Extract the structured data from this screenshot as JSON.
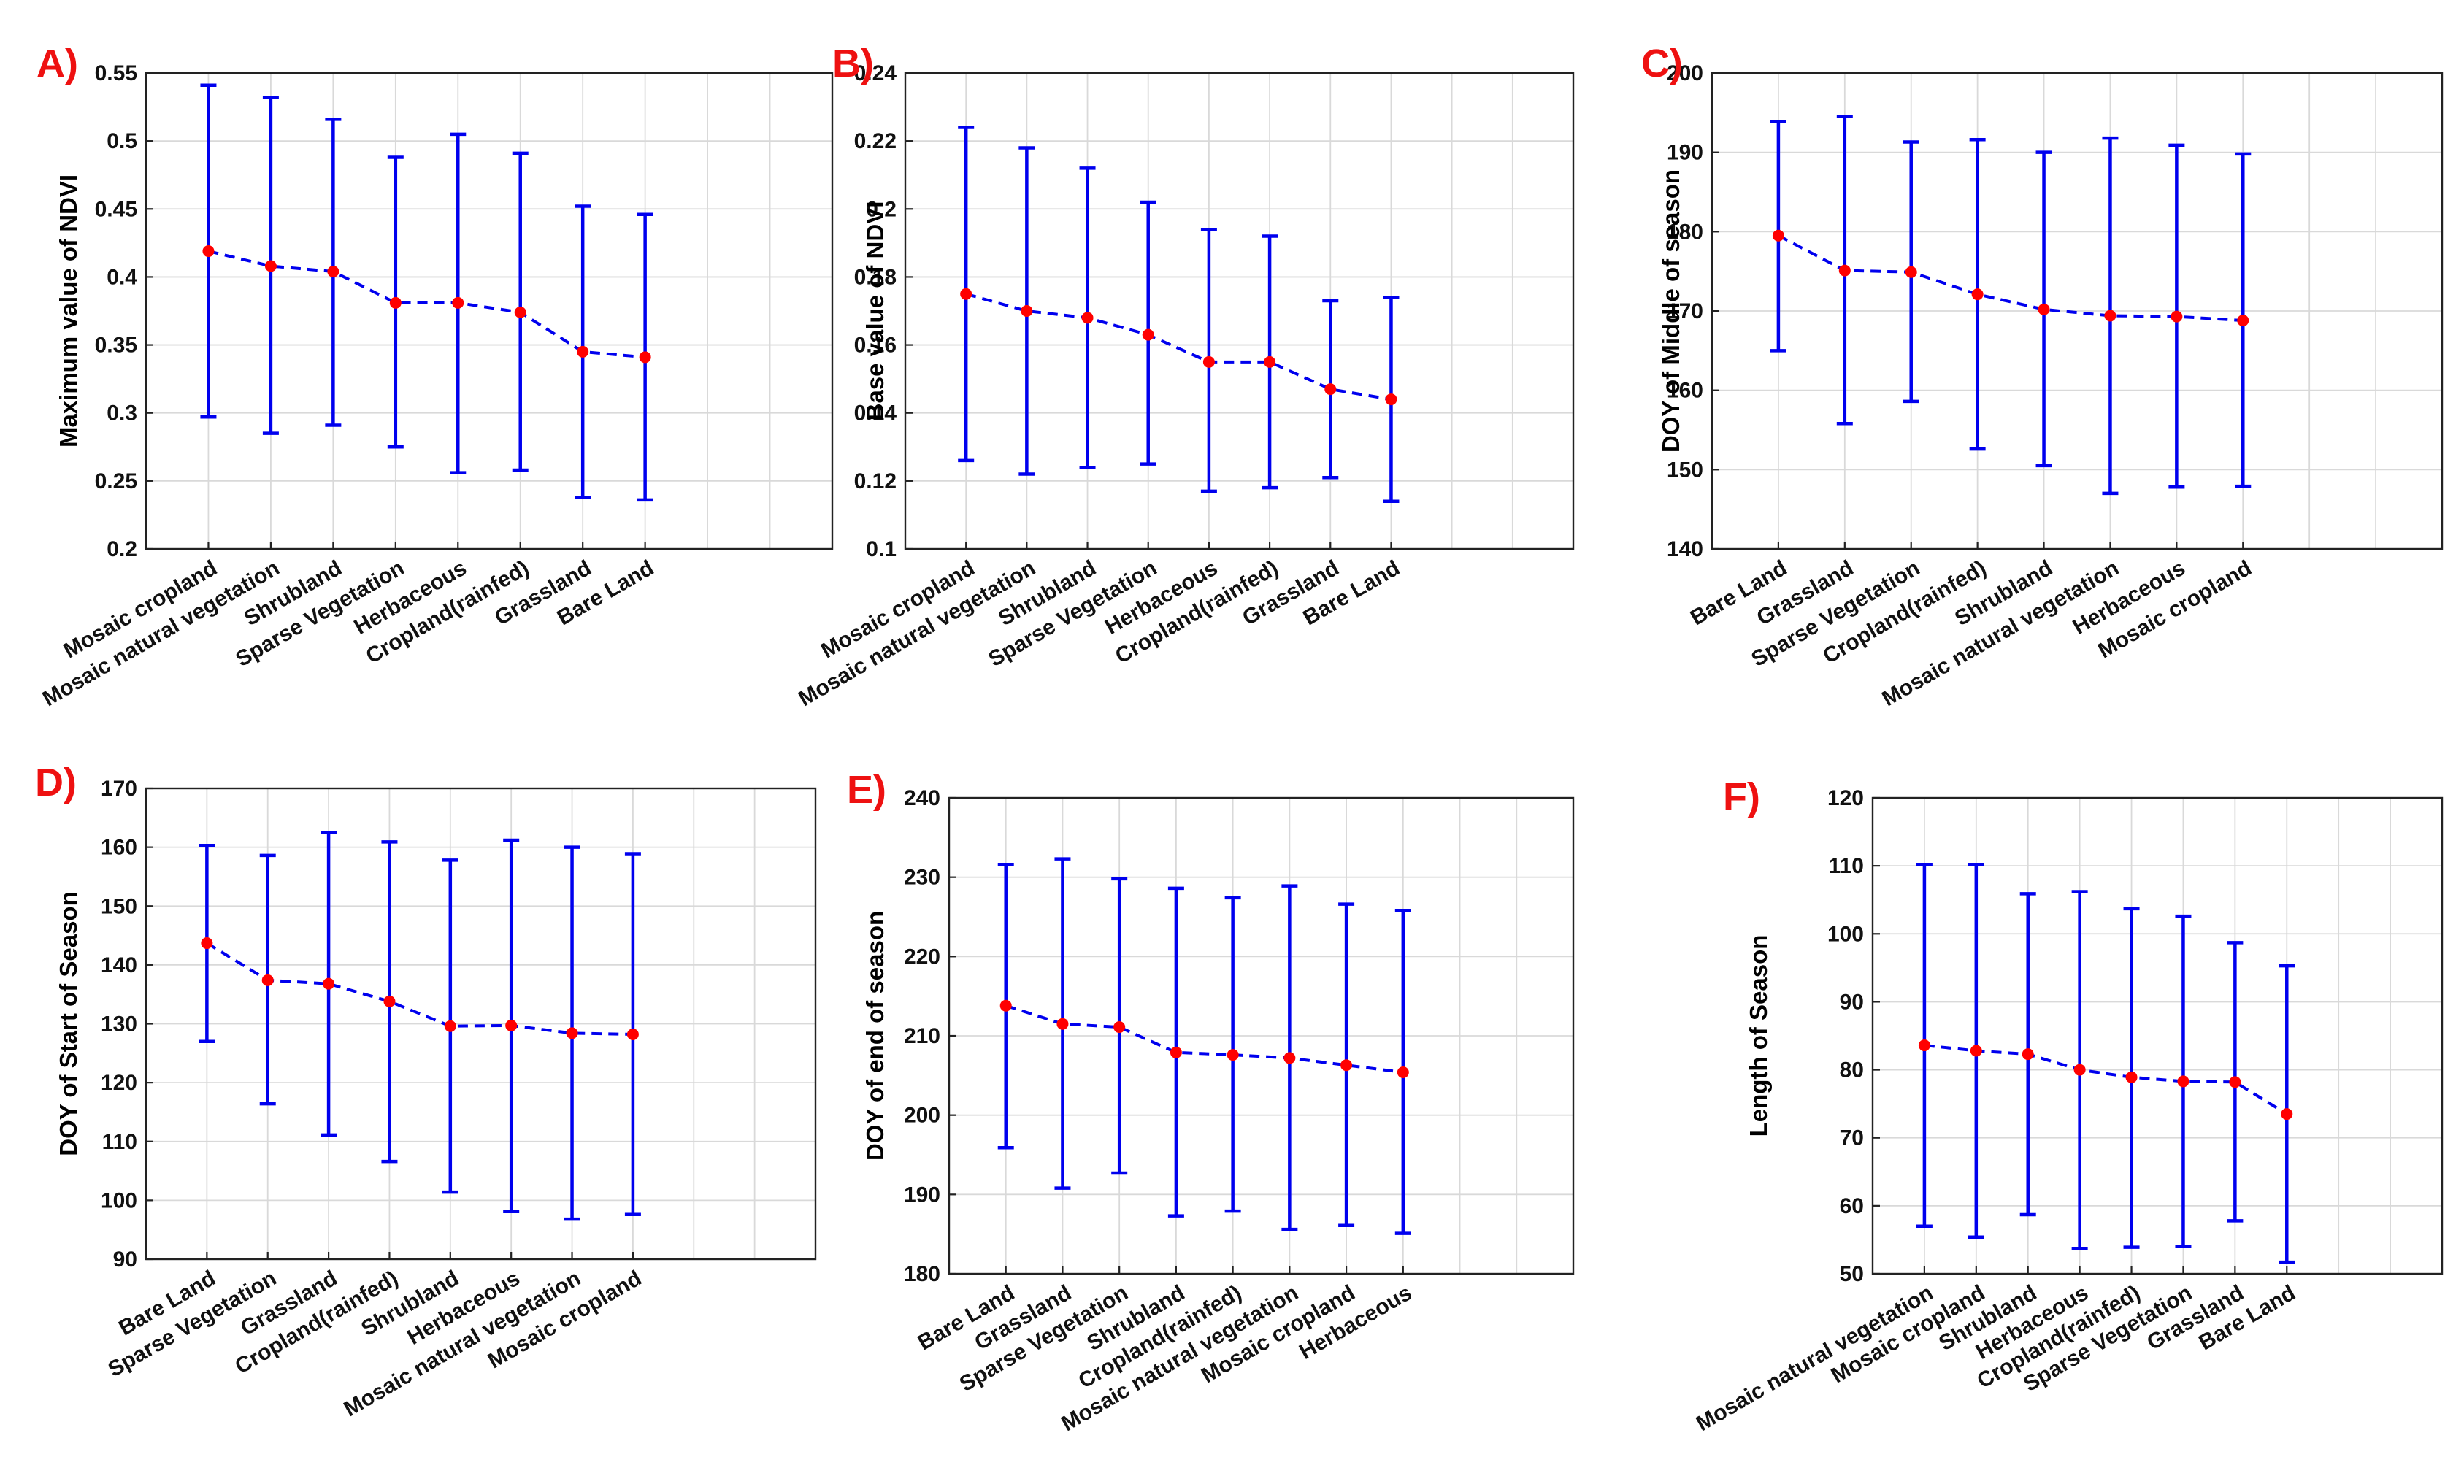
{
  "colors": {
    "bars": "#0000ee",
    "points": "#ff0000",
    "letters": "#ee1111"
  },
  "chart_data": [
    {
      "panel": "A)",
      "type": "errorbar",
      "ylabel": "Maximum value of NDVI",
      "ylim": [
        0.2,
        0.55
      ],
      "yticks": [
        0.2,
        0.25,
        0.3,
        0.35,
        0.4,
        0.45,
        0.5,
        0.55
      ],
      "yticklabels": [
        "0.2",
        "0.25",
        "0.3",
        "0.35",
        "0.4",
        "0.45",
        "0.5",
        "0.55"
      ],
      "categories": [
        "Mosaic cropland",
        "Mosaic natural vegetation",
        "Shrubland",
        "Sparse Vegetation",
        "Herbaceous",
        "Cropland(rainfed)",
        "Grassland",
        "Bare Land"
      ],
      "values": [
        0.419,
        0.408,
        0.404,
        0.381,
        0.381,
        0.374,
        0.345,
        0.341
      ],
      "lower": [
        0.297,
        0.285,
        0.291,
        0.275,
        0.256,
        0.258,
        0.238,
        0.236
      ],
      "upper": [
        0.541,
        0.532,
        0.516,
        0.488,
        0.505,
        0.491,
        0.452,
        0.446
      ],
      "grid": true
    },
    {
      "panel": "B)",
      "type": "errorbar",
      "ylabel": "Base value of NDVI",
      "ylim": [
        0.1,
        0.24
      ],
      "yticks": [
        0.1,
        0.12,
        0.14,
        0.16,
        0.18,
        0.2,
        0.22,
        0.24
      ],
      "yticklabels": [
        "0.1",
        "0.12",
        "0.14",
        "0.16",
        "0.18",
        "0.2",
        "0.22",
        "0.24"
      ],
      "categories": [
        "Mosaic cropland",
        "Mosaic natural vegetation",
        "Shrubland",
        "Sparse Vegetation",
        "Herbaceous",
        "Cropland(rainfed)",
        "Grassland",
        "Bare Land"
      ],
      "values": [
        0.175,
        0.17,
        0.168,
        0.163,
        0.155,
        0.155,
        0.147,
        0.144
      ],
      "lower": [
        0.126,
        0.122,
        0.124,
        0.125,
        0.117,
        0.118,
        0.121,
        0.114
      ],
      "upper": [
        0.224,
        0.218,
        0.212,
        0.202,
        0.194,
        0.192,
        0.173,
        0.174
      ],
      "grid": true
    },
    {
      "panel": "C)",
      "type": "errorbar",
      "ylabel": "DOY of Middle of season",
      "ylim": [
        140,
        200
      ],
      "yticks": [
        140,
        150,
        160,
        170,
        180,
        190,
        200
      ],
      "yticklabels": [
        "140",
        "150",
        "160",
        "170",
        "180",
        "190",
        "200"
      ],
      "categories": [
        "Bare Land",
        "Grassland",
        "Sparse Vegetation",
        "Cropland(rainfed)",
        "Shrubland",
        "Mosaic natural vegetation",
        "Herbaceous",
        "Mosaic cropland"
      ],
      "values": [
        179.5,
        175.1,
        174.9,
        172.1,
        170.2,
        169.4,
        169.3,
        168.8
      ],
      "lower": [
        165.0,
        155.8,
        158.6,
        152.6,
        150.5,
        147.0,
        147.8,
        147.9
      ],
      "upper": [
        193.9,
        194.5,
        191.3,
        191.6,
        190.0,
        191.8,
        190.9,
        189.8
      ],
      "grid": true
    },
    {
      "panel": "D)",
      "type": "errorbar",
      "ylabel": "DOY of Start of Season",
      "ylim": [
        90,
        170
      ],
      "yticks": [
        90,
        100,
        110,
        120,
        130,
        140,
        150,
        160,
        170
      ],
      "yticklabels": [
        "90",
        "100",
        "110",
        "120",
        "130",
        "140",
        "150",
        "160",
        "170"
      ],
      "categories": [
        "Bare Land",
        "Sparse Vegetation",
        "Grassland",
        "Cropland(rainfed)",
        "Shrubland",
        "Herbaceous",
        "Mosaic natural vegetation",
        "Mosaic cropland"
      ],
      "values": [
        143.7,
        137.4,
        136.8,
        133.8,
        129.6,
        129.7,
        128.4,
        128.2
      ],
      "lower": [
        127.0,
        116.4,
        111.1,
        106.6,
        101.4,
        98.1,
        96.8,
        97.6
      ],
      "upper": [
        160.3,
        158.6,
        162.5,
        160.9,
        157.8,
        161.2,
        160.0,
        158.9
      ],
      "grid": true
    },
    {
      "panel": "E)",
      "type": "errorbar",
      "ylabel": "DOY of end of season",
      "ylim": [
        180,
        240
      ],
      "yticks": [
        180,
        190,
        200,
        210,
        220,
        230,
        240
      ],
      "yticklabels": [
        "180",
        "190",
        "200",
        "210",
        "220",
        "230",
        "240"
      ],
      "categories": [
        "Bare Land",
        "Grassland",
        "Sparse Vegetation",
        "Shrubland",
        "Cropland(rainfed)",
        "Mosaic natural vegetation",
        "Mosaic cropland",
        "Herbaceous"
      ],
      "values": [
        213.8,
        211.5,
        211.1,
        207.9,
        207.6,
        207.2,
        206.3,
        205.4
      ],
      "lower": [
        195.9,
        190.8,
        192.7,
        187.3,
        187.9,
        185.6,
        186.1,
        185.1
      ],
      "upper": [
        231.6,
        232.3,
        229.8,
        228.6,
        227.4,
        228.9,
        226.6,
        225.8
      ],
      "grid": true
    },
    {
      "panel": "F)",
      "type": "errorbar",
      "ylabel": "Length of Season",
      "ylim": [
        50,
        120
      ],
      "yticks": [
        50,
        60,
        70,
        80,
        90,
        100,
        110,
        120
      ],
      "yticklabels": [
        "50",
        "60",
        "70",
        "80",
        "90",
        "100",
        "110",
        "120"
      ],
      "categories": [
        "Mosaic natural vegetation",
        "Mosaic cropland",
        "Shrubland",
        "Herbaceous",
        "Cropland(rainfed)",
        "Sparse Vegetation",
        "Grassland",
        "Bare Land"
      ],
      "values": [
        83.6,
        82.8,
        82.3,
        80.0,
        78.9,
        78.3,
        78.2,
        73.5
      ],
      "lower": [
        57.0,
        55.4,
        58.7,
        53.7,
        53.9,
        54.0,
        57.8,
        51.7
      ],
      "upper": [
        110.2,
        110.2,
        105.9,
        106.2,
        103.7,
        102.6,
        98.7,
        95.3
      ],
      "grid": true
    }
  ]
}
